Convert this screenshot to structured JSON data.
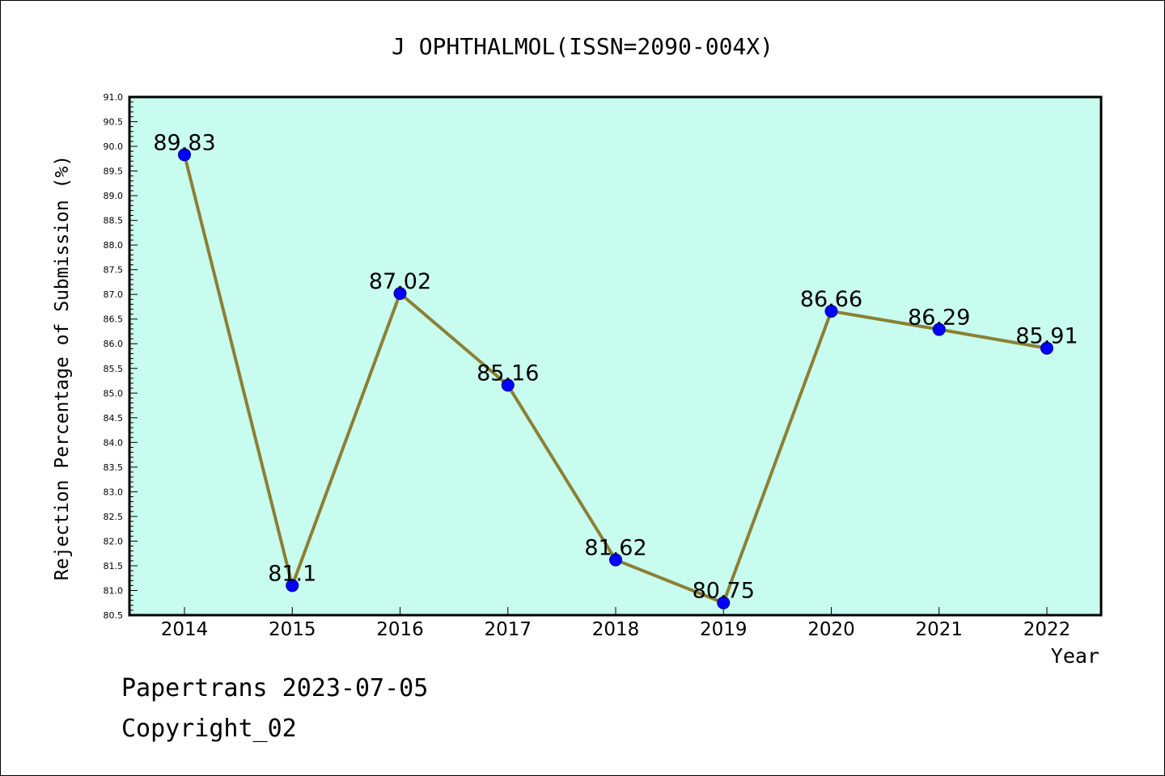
{
  "chart_data": {
    "type": "line",
    "title": "J OPHTHALMOL(ISSN=2090-004X)",
    "xlabel": "Year",
    "ylabel": "Rejection Percentage of Submission (%)",
    "categories": [
      "2014",
      "2015",
      "2016",
      "2017",
      "2018",
      "2019",
      "2020",
      "2021",
      "2022"
    ],
    "values": [
      89.83,
      81.1,
      87.02,
      85.16,
      81.62,
      80.75,
      86.66,
      86.29,
      85.91
    ],
    "data_labels": [
      "89.83",
      "81.1",
      "87.02",
      "85.16",
      "81.62",
      "80.75",
      "86.66",
      "86.29",
      "85.91"
    ],
    "ylim": [
      80.5,
      91.0
    ],
    "ytick_step": 0.5,
    "grid": false,
    "colors": {
      "plot_background": "#c8fcee",
      "line": "#8b8035",
      "marker": "#0000ff",
      "marker_edge": "#00008b"
    }
  },
  "footer": {
    "line1": "Papertrans 2023-07-05",
    "line2": "Copyright_02"
  }
}
